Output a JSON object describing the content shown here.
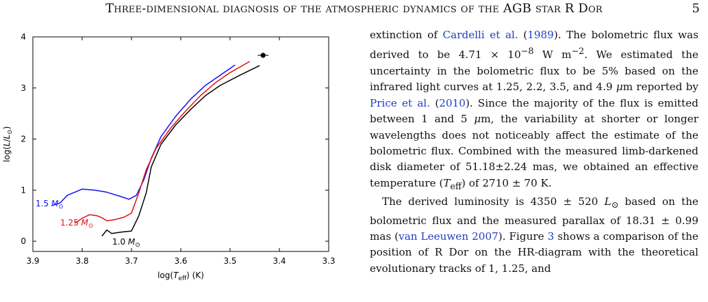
{
  "header": {
    "title": "Three-dimensional diagnosis of the atmospheric dynamics of the AGB star R Dor",
    "page_number": "5"
  },
  "figure": {
    "xlabel": "log(T_eff) (K)",
    "ylabel": "log(L/L_⊙)",
    "x_ticks": [
      "3.9",
      "3.8",
      "3.7",
      "3.6",
      "3.5",
      "3.4",
      "3.3"
    ],
    "y_ticks": [
      "0",
      "1",
      "2",
      "3",
      "4"
    ],
    "track_labels": [
      "1.5 M_⊙",
      "1.25 M_⊙",
      "1.0 M_⊙"
    ],
    "colors": {
      "track_1_5": "#1010ff",
      "track_1_25": "#e01010",
      "track_1_0": "#000000"
    }
  },
  "chart_data": {
    "type": "line",
    "xlabel": "log(Teff) (K)",
    "ylabel": "log(L/L⊙)",
    "xlim": [
      3.9,
      3.3
    ],
    "ylim": [
      -0.2,
      4.0
    ],
    "x_reversed": true,
    "grid": false,
    "series": [
      {
        "name": "1.5 M⊙",
        "color": "#1010ff",
        "x": [
          3.86,
          3.845,
          3.83,
          3.8,
          3.775,
          3.75,
          3.72,
          3.705,
          3.69,
          3.675,
          3.66,
          3.64,
          3.61,
          3.58,
          3.55,
          3.52,
          3.49
        ],
        "y": [
          0.7,
          0.75,
          0.9,
          1.02,
          1.0,
          0.96,
          0.87,
          0.82,
          0.9,
          1.2,
          1.62,
          2.05,
          2.45,
          2.78,
          3.05,
          3.25,
          3.45
        ]
      },
      {
        "name": "1.25 M⊙",
        "color": "#e01010",
        "x": [
          3.815,
          3.8,
          3.785,
          3.77,
          3.76,
          3.75,
          3.735,
          3.715,
          3.7,
          3.685,
          3.67,
          3.65,
          3.62,
          3.59,
          3.56,
          3.53,
          3.5,
          3.46
        ],
        "y": [
          0.35,
          0.45,
          0.52,
          0.5,
          0.46,
          0.4,
          0.42,
          0.47,
          0.55,
          0.95,
          1.4,
          1.82,
          2.22,
          2.55,
          2.85,
          3.1,
          3.3,
          3.52
        ]
      },
      {
        "name": "1.0 M⊙",
        "color": "#000000",
        "x": [
          3.76,
          3.75,
          3.74,
          3.72,
          3.7,
          3.685,
          3.67,
          3.66,
          3.64,
          3.61,
          3.58,
          3.55,
          3.52,
          3.48,
          3.44
        ],
        "y": [
          0.1,
          0.22,
          0.15,
          0.18,
          0.2,
          0.5,
          0.95,
          1.45,
          1.9,
          2.28,
          2.58,
          2.85,
          3.05,
          3.25,
          3.44
        ]
      }
    ],
    "points": [
      {
        "name": "R Dor",
        "x": 3.433,
        "y": 3.64,
        "xerr": 0.011,
        "yerr": 0.05
      }
    ]
  },
  "text": {
    "p1": "extinction of Cardelli et al. (1989). The bolometric flux was derived to be 4.71 × 10⁻⁸ W m⁻². We estimated the uncertainty in the bolometric flux to be 5% based on the infrared light curves at 1.25, 2.2, 3.5, and 4.9 μm reported by Price et al. (2010). Since the majority of the flux is emitted between 1 and 5 μm, the variability at shorter or longer wavelengths does not noticeably affect the estimate of the bolometric flux. Combined with the measured limb-darkened disk diameter of 51.18±2.24 mas, we obtained an effective temperature (T_eff) of 2710 ± 70 K.",
    "p2": "The derived luminosity is 4350 ± 520 L⊙ based on the bolometric flux and the measured parallax of 18.31 ± 0.99 mas (van Leeuwen 2007). Figure 3 shows a comparison of the position of R Dor on the HR-diagram with the theoretical evolutionary tracks of 1, 1.25, and"
  }
}
